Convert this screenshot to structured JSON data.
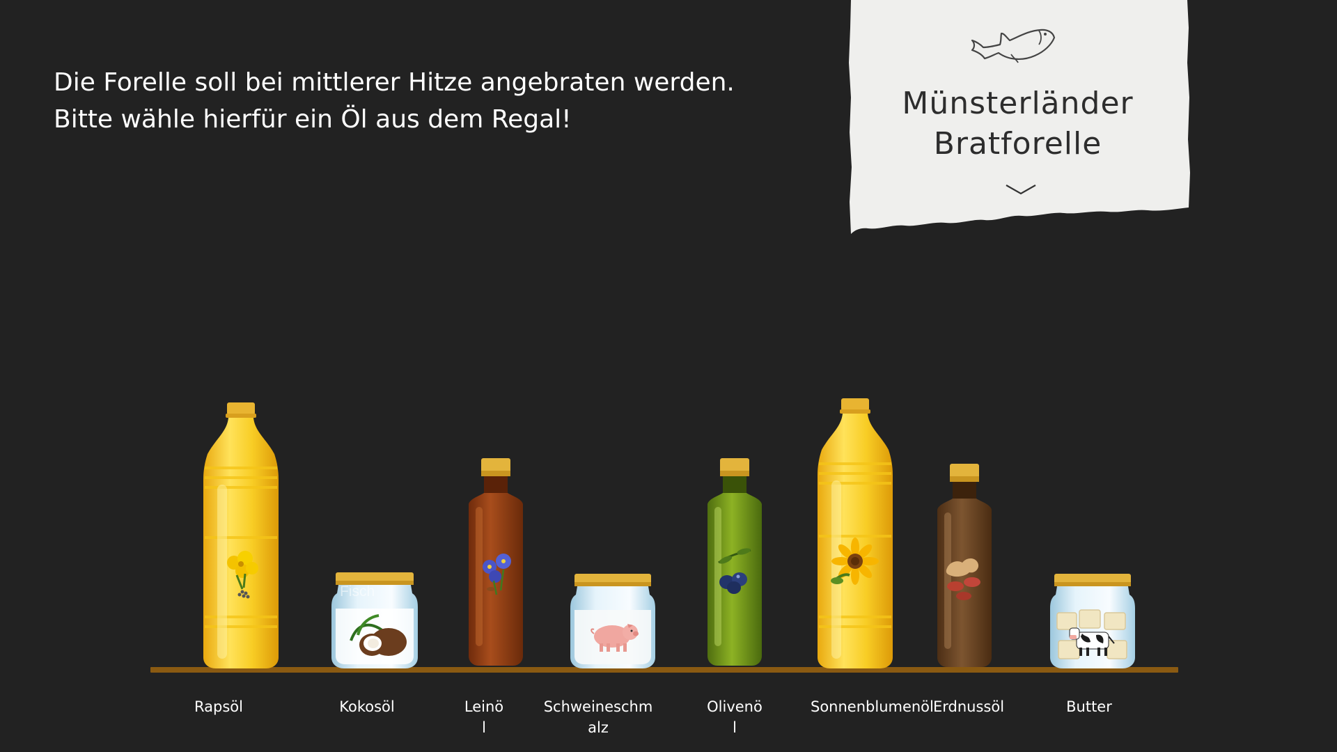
{
  "instruction": {
    "line1": "Die Forelle soll bei mittlerer Hitze angebraten werden.",
    "line2": "Bitte wähle hierfür ein Öl aus dem Regal!"
  },
  "recipe_card": {
    "title_line1": "Münsterländer",
    "title_line2": "Bratforelle",
    "icon": "fish-icon",
    "expand_icon": "chevron-down-icon"
  },
  "shelf": {
    "items": [
      {
        "label": "Rapsöl",
        "icon": "rapeseed-flower-icon",
        "container": "plastic-bottle"
      },
      {
        "label": "Kokosöl",
        "icon": "coconut-icon",
        "container": "jar",
        "overlay_text": "Fisch"
      },
      {
        "label": "Leinö\nl",
        "icon": "flax-flower-icon",
        "container": "glass-bottle"
      },
      {
        "label": "Schweineschm\nalz",
        "icon": "pig-icon",
        "container": "jar"
      },
      {
        "label": "Olivenö\nl",
        "icon": "olive-icon",
        "container": "glass-bottle"
      },
      {
        "label": "Sonnenblumenöl",
        "icon": "sunflower-icon",
        "container": "plastic-bottle"
      },
      {
        "label": "Erdnussöl",
        "icon": "peanut-icon",
        "container": "glass-bottle"
      },
      {
        "label": "Butter",
        "icon": "cow-icon",
        "container": "jar"
      }
    ]
  },
  "colors": {
    "background": "#222222",
    "paper": "#efefed",
    "shelf": "#8a5a12",
    "golden_oil": "#f5c518",
    "amber_bottle": "#8b3a12",
    "olive_bottle": "#7d9f1c",
    "peanut_bottle": "#6b4323",
    "cap": "#e3b43c"
  }
}
